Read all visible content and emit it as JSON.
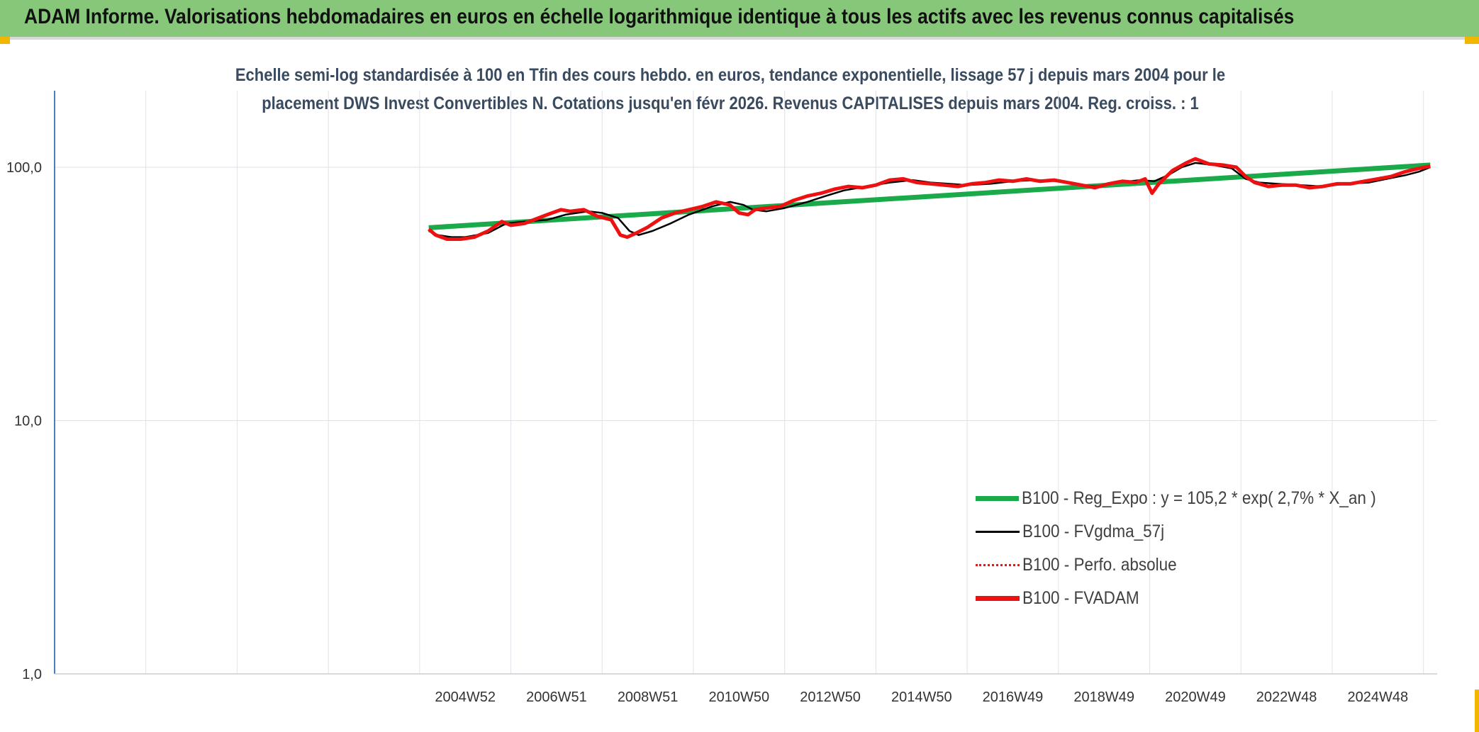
{
  "banner": {
    "title": "ADAM Informe. Valorisations hebdomadaires en euros en échelle logarithmique identique à tous les actifs avec les revenus connus capitalisés"
  },
  "colors": {
    "banner_bg": "#86c77a",
    "accent_corner": "#f2b600",
    "trend": "#1aaa4a",
    "smoothed": "#000000",
    "absolute": "#d62020",
    "fvadam": "#ee1111",
    "axis": "#4a7ebb",
    "grid": "#dfe3e8"
  },
  "chart_data": {
    "type": "line",
    "title_line1": "Echelle semi-log standardisée à 100 en Tfin des cours hebdo. en euros, tendance exponentielle, lissage 57 j depuis mars 2004 pour le",
    "title_line2": "placement DWS Invest Convertibles N. Cotations jusqu'en févr 2026. Revenus CAPITALISES depuis mars 2004. Reg. croiss. : 1",
    "yscale": "log",
    "ylim": [
      1,
      200
    ],
    "y_ticks": [
      {
        "value": 100,
        "label": "100,0"
      },
      {
        "value": 10,
        "label": "10,0"
      },
      {
        "value": 1,
        "label": "1,0"
      }
    ],
    "x_ticks": [
      "2004W52",
      "2006W51",
      "2008W51",
      "2010W50",
      "2012W50",
      "2014W50",
      "2016W49",
      "2018W49",
      "2020W49",
      "2022W48",
      "2024W48"
    ],
    "x_tick_years": [
      2005,
      2007,
      2009,
      2011,
      2013,
      2015,
      2017,
      2019,
      2021,
      2023,
      2025
    ],
    "xlim": [
      1996,
      2026.3
    ],
    "legend_position": "bottom-right",
    "legend": [
      {
        "key": "trend",
        "label": "B100 - Reg_Expo : y = 105,2 * exp( 2,7% *  X_an )",
        "style": "thick-solid"
      },
      {
        "key": "smoothed",
        "label": "B100 - FVgdma_57j",
        "style": "thin-solid"
      },
      {
        "key": "absolute",
        "label": "B100 - Perfo. absolue",
        "style": "dotted"
      },
      {
        "key": "fvadam",
        "label": "B100 - FVADAM",
        "style": "thick-solid"
      }
    ],
    "series": [
      {
        "name": "B100 - Reg_Expo",
        "x": [
          2004.2,
          2026.15
        ],
        "y": [
          57.7,
          102.0
        ]
      },
      {
        "name": "B100 - FVgdma_57j",
        "x": [
          2004.2,
          2004.4,
          2004.7,
          2005.0,
          2005.5,
          2005.9,
          2006.3,
          2006.8,
          2007.2,
          2007.7,
          2008.0,
          2008.35,
          2008.6,
          2008.8,
          2009.1,
          2009.5,
          2009.9,
          2010.4,
          2010.8,
          2011.1,
          2011.3,
          2011.6,
          2012.0,
          2012.5,
          2012.9,
          2013.3,
          2013.8,
          2014.3,
          2014.8,
          2015.2,
          2015.6,
          2016.0,
          2016.5,
          2017.0,
          2017.5,
          2018.0,
          2018.4,
          2018.8,
          2019.3,
          2019.8,
          2020.1,
          2020.4,
          2020.7,
          2021.0,
          2021.4,
          2021.8,
          2022.1,
          2022.4,
          2022.8,
          2023.3,
          2023.8,
          2024.3,
          2024.8,
          2025.2,
          2025.6,
          2025.9,
          2026.15
        ],
        "y": [
          56,
          54,
          53,
          53,
          55,
          60,
          61,
          62,
          65,
          67,
          66,
          63,
          56,
          54,
          56,
          60,
          65,
          70,
          73,
          71,
          68,
          67,
          69,
          73,
          77,
          81,
          84,
          87,
          89,
          87,
          86,
          85,
          86,
          88,
          89,
          88,
          86,
          84,
          87,
          89,
          88,
          93,
          100,
          104,
          102,
          99,
          90,
          87,
          86,
          85,
          84,
          86,
          87,
          90,
          93,
          96,
          100
        ]
      },
      {
        "name": "B100 - FVADAM",
        "x": [
          2004.2,
          2004.35,
          2004.6,
          2004.9,
          2005.2,
          2005.5,
          2005.8,
          2006.0,
          2006.3,
          2006.5,
          2006.8,
          2007.1,
          2007.3,
          2007.6,
          2007.9,
          2008.2,
          2008.4,
          2008.55,
          2008.75,
          2009.0,
          2009.3,
          2009.6,
          2009.9,
          2010.2,
          2010.5,
          2010.8,
          2011.0,
          2011.2,
          2011.35,
          2011.6,
          2011.9,
          2012.2,
          2012.5,
          2012.8,
          2013.1,
          2013.4,
          2013.7,
          2014.0,
          2014.3,
          2014.6,
          2014.9,
          2015.2,
          2015.5,
          2015.8,
          2016.1,
          2016.4,
          2016.7,
          2017.0,
          2017.3,
          2017.6,
          2017.9,
          2018.2,
          2018.5,
          2018.8,
          2019.1,
          2019.4,
          2019.7,
          2019.9,
          2020.05,
          2020.2,
          2020.5,
          2020.8,
          2021.0,
          2021.3,
          2021.6,
          2021.9,
          2022.1,
          2022.3,
          2022.6,
          2022.9,
          2023.2,
          2023.5,
          2023.8,
          2024.1,
          2024.4,
          2024.7,
          2025.0,
          2025.3,
          2025.6,
          2025.9,
          2026.15
        ],
        "y": [
          57,
          54,
          52,
          52,
          53,
          56,
          61,
          59,
          60,
          62,
          65,
          68,
          67,
          68,
          64,
          62,
          54,
          53,
          55,
          58,
          63,
          66,
          68,
          70,
          73,
          71,
          66,
          65,
          68,
          69,
          70,
          74,
          77,
          79,
          82,
          84,
          83,
          85,
          89,
          90,
          87,
          86,
          85,
          84,
          86,
          87,
          89,
          88,
          90,
          88,
          89,
          87,
          85,
          83,
          86,
          88,
          87,
          90,
          79,
          86,
          97,
          104,
          108,
          103,
          102,
          100,
          92,
          87,
          84,
          85,
          85,
          83,
          84,
          86,
          86,
          88,
          90,
          92,
          96,
          99,
          101
        ]
      }
    ]
  }
}
